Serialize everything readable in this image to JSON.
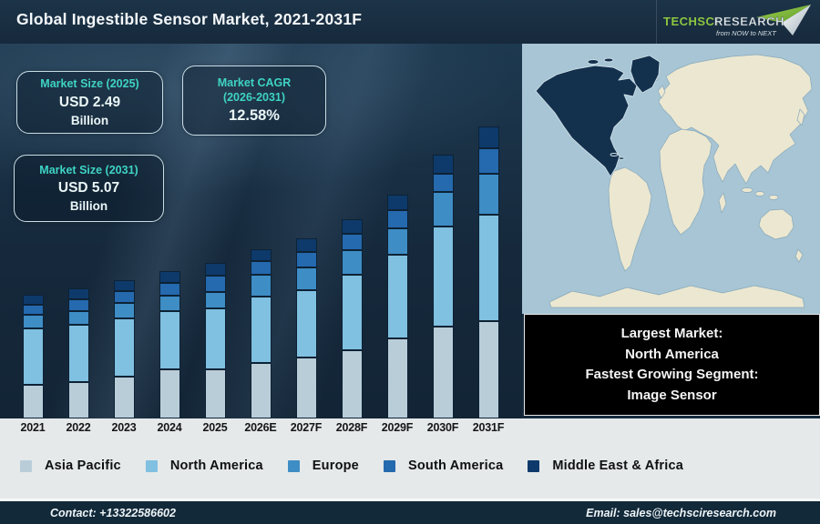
{
  "header": {
    "title": "Global Ingestible Sensor Market, 2021-2031F",
    "logo": {
      "brand_primary": "TechSci",
      "brand_secondary": "Research",
      "tagline": "from NOW to NEXT",
      "brand_green": "#8dc63f"
    }
  },
  "info_boxes": {
    "size_2025": {
      "label": "Market Size (2025)",
      "value": "USD 2.49",
      "unit": "Billion"
    },
    "cagr": {
      "label": "Market CAGR",
      "label2": "(2026-2031)",
      "value": "12.58%"
    },
    "size_2031": {
      "label": "Market Size (2031)",
      "value": "USD 5.07",
      "unit": "Billion"
    }
  },
  "note_box": {
    "lines": [
      "Largest Market:",
      "North America",
      "Fastest Growing Segment:",
      "Image Sensor"
    ]
  },
  "chart_data": {
    "type": "bar",
    "stacked": true,
    "title": "Global Ingestible Sensor Market, 2021-2031F",
    "xlabel": "",
    "ylabel": "",
    "axis_values_shown": false,
    "legend_position": "bottom",
    "grid": false,
    "categories": [
      "2021",
      "2022",
      "2023",
      "2024",
      "2025",
      "2026E",
      "2027F",
      "2028F",
      "2029F",
      "2030F",
      "2031F"
    ],
    "unit": "relative stacked height in source-graphic pixels (value axis not shown)",
    "series": [
      {
        "name": "Asia Pacific",
        "color": "#b9cdd9",
        "values": [
          37,
          40,
          46,
          54,
          54,
          61,
          67,
          75,
          88,
          101,
          107
        ]
      },
      {
        "name": "North America",
        "color": "#80c0e0",
        "values": [
          62,
          63,
          64,
          64,
          67,
          73,
          74,
          83,
          92,
          110,
          117
        ]
      },
      {
        "name": "Europe",
        "color": "#3e8dc5",
        "values": [
          15,
          15,
          17,
          17,
          18,
          24,
          25,
          27,
          29,
          38,
          45
        ]
      },
      {
        "name": "South America",
        "color": "#2569ae",
        "values": [
          11,
          13,
          13,
          14,
          18,
          15,
          17,
          18,
          20,
          20,
          28
        ]
      },
      {
        "name": "Middle East & Africa",
        "color": "#0d3a6b",
        "values": [
          11,
          12,
          12,
          13,
          14,
          13,
          15,
          16,
          17,
          21,
          24
        ]
      }
    ],
    "annotations": [
      "Market Size (2025): USD 2.49 Billion",
      "Market CAGR (2026-2031): 12.58%",
      "Market Size (2031): USD 5.07 Billion",
      "Largest Market: North America",
      "Fastest Growing Segment: Image Sensor"
    ]
  },
  "map": {
    "highlighted_region": "North America",
    "ocean_color": "#a7c5d4",
    "land_color": "#ece7d0",
    "highlight_color": "#13304d"
  },
  "footer": {
    "contact": "Contact: +13322586602",
    "email": "Email: sales@techsciresearch.com"
  },
  "colors": {
    "accent_teal": "#3ed3c3",
    "titlebar": "#1b3146",
    "footer_bar": "#12293a",
    "band": "#e5e9ea"
  }
}
